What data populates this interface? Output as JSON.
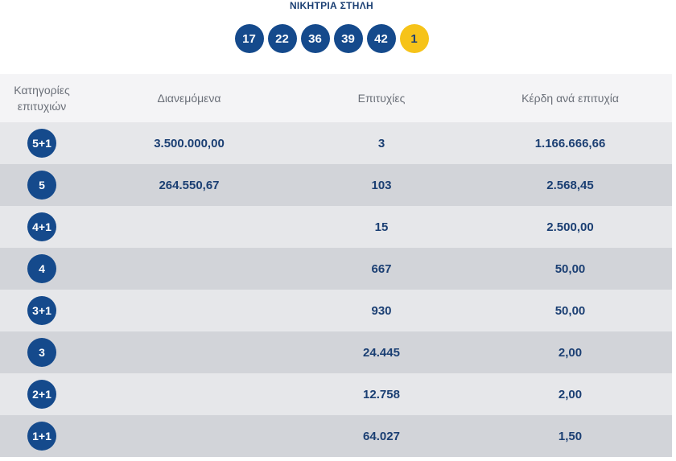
{
  "winning_line": {
    "title": "ΝΙΚΗΤΡΙΑ ΣΤΗΛΗ",
    "numbers": [
      "17",
      "22",
      "36",
      "39",
      "42"
    ],
    "bonus": "1"
  },
  "table": {
    "headers": {
      "category_line1": "Κατηγορίες",
      "category_line2": "επιτυχιών",
      "distributed": "Διανεμόμενα",
      "winners": "Επιτυχίες",
      "prize_per_winner": "Κέρδη ανά επιτυχία"
    },
    "rows": [
      {
        "category": "5+1",
        "distributed": "3.500.000,00",
        "winners": "3",
        "prize": "1.166.666,66"
      },
      {
        "category": "5",
        "distributed": "264.550,67",
        "winners": "103",
        "prize": "2.568,45"
      },
      {
        "category": "4+1",
        "distributed": "",
        "winners": "15",
        "prize": "2.500,00"
      },
      {
        "category": "4",
        "distributed": "",
        "winners": "667",
        "prize": "50,00"
      },
      {
        "category": "3+1",
        "distributed": "",
        "winners": "930",
        "prize": "50,00"
      },
      {
        "category": "3",
        "distributed": "",
        "winners": "24.445",
        "prize": "2,00"
      },
      {
        "category": "2+1",
        "distributed": "",
        "winners": "12.758",
        "prize": "2,00"
      },
      {
        "category": "1+1",
        "distributed": "",
        "winners": "64.027",
        "prize": "1,50"
      }
    ]
  },
  "colors": {
    "ball": "#154a8c",
    "bonus_ball": "#f6c319",
    "text": "#1b3f73"
  }
}
